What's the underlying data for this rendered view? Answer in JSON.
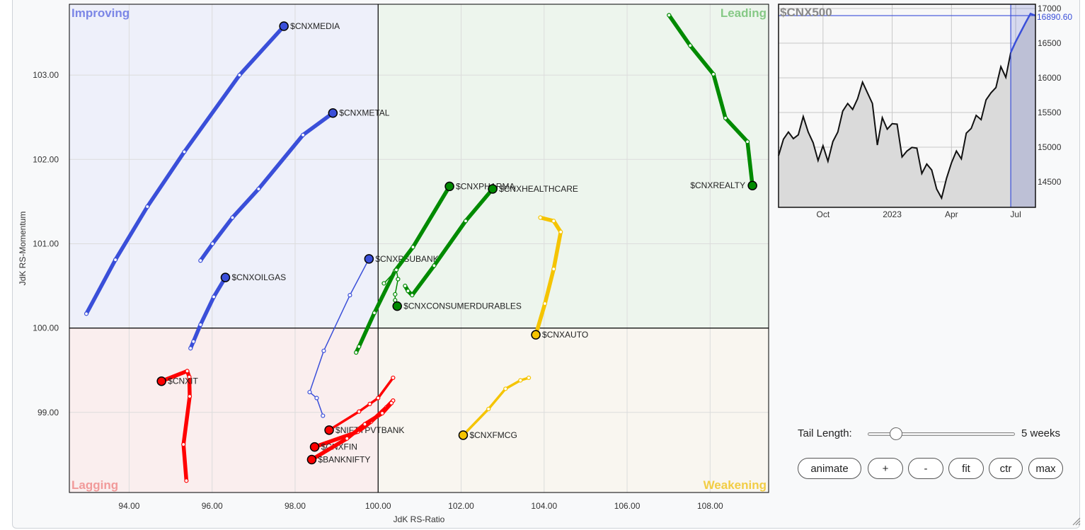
{
  "chart_data": [
    {
      "type": "scatter",
      "subtype": "relative-rotation-graph",
      "xlabel": "JdK RS-Ratio",
      "ylabel": "JdK RS-Momentum",
      "xlim": [
        92.56,
        109.41
      ],
      "ylim": [
        98.05,
        103.84
      ],
      "xticks": [
        94,
        96,
        98,
        100,
        102,
        104,
        106,
        108
      ],
      "xtick_labels": [
        "94.00",
        "96.00",
        "98.00",
        "100.00",
        "102.00",
        "104.00",
        "106.00",
        "108.00"
      ],
      "yticks": [
        99,
        100,
        101,
        102,
        103
      ],
      "ytick_labels": [
        "99.00",
        "100.00",
        "101.00",
        "102.00",
        "103.00"
      ],
      "grid": true,
      "quadrants": {
        "improving": {
          "label": "Improving",
          "color": "#7b86e6",
          "fill": "#eef0fa"
        },
        "leading": {
          "label": "Leading",
          "color": "#86c986",
          "fill": "#edf5ed"
        },
        "lagging": {
          "label": "Lagging",
          "color": "#f19a9a",
          "fill": "#faeeee"
        },
        "weakening": {
          "label": "Weakening",
          "color": "#f2cd45",
          "fill": "#f9f6f0"
        }
      },
      "series": [
        {
          "name": "$CNXMEDIA",
          "color": "#3a4fd9",
          "weight": "thick",
          "x": [
            92.97,
            93.67,
            94.44,
            95.33,
            96.66,
            97.73
          ],
          "y": [
            100.17,
            100.81,
            101.44,
            102.09,
            103.0,
            103.58
          ]
        },
        {
          "name": "$CNXMETAL",
          "color": "#3a4fd9",
          "weight": "thick",
          "x": [
            95.72,
            96.01,
            96.49,
            97.12,
            98.19,
            98.91
          ],
          "y": [
            100.8,
            101.0,
            101.31,
            101.65,
            102.29,
            102.55
          ]
        },
        {
          "name": "$CNXOILGAS",
          "color": "#3a4fd9",
          "weight": "thick",
          "x": [
            95.48,
            95.55,
            95.72,
            96.04,
            96.32
          ],
          "y": [
            99.76,
            99.84,
            100.04,
            100.37,
            100.6
          ]
        },
        {
          "name": "$CNXPSUBANK",
          "color": "#3a4fd9",
          "weight": "thin",
          "x": [
            98.67,
            98.52,
            98.35,
            98.69,
            99.32,
            99.78
          ],
          "y": [
            98.96,
            99.17,
            99.24,
            99.73,
            100.39,
            100.82
          ]
        },
        {
          "name": "$CNXIT",
          "color": "#ff0000",
          "weight": "thick",
          "x": [
            95.38,
            95.31,
            95.46,
            95.45,
            95.4,
            94.78
          ],
          "y": [
            98.19,
            98.62,
            99.19,
            99.42,
            99.49,
            99.37
          ]
        },
        {
          "name": "$NIFTYPVTBANK",
          "color": "#ff0000",
          "weight": "medium",
          "x": [
            100.36,
            100.0,
            99.8,
            99.54,
            98.82
          ],
          "y": [
            99.41,
            99.17,
            99.1,
            99.01,
            98.79
          ]
        },
        {
          "name": "$CNXFIN",
          "color": "#ff0000",
          "weight": "thick",
          "x": [
            100.36,
            100.2,
            99.83,
            99.51,
            98.47
          ],
          "y": [
            99.14,
            99.06,
            98.89,
            98.77,
            98.59
          ]
        },
        {
          "name": "$BANKNIFTY",
          "color": "#ff0000",
          "weight": "thick",
          "x": [
            100.32,
            100.1,
            99.68,
            99.25,
            98.4
          ],
          "y": [
            99.11,
            98.99,
            98.86,
            98.69,
            98.44
          ]
        },
        {
          "name": "$CNXPHARMA",
          "color": "#008a00",
          "weight": "thick",
          "x": [
            99.47,
            99.54,
            99.91,
            100.41,
            100.84,
            101.72
          ],
          "y": [
            99.71,
            99.78,
            100.18,
            100.68,
            100.96,
            101.68
          ]
        },
        {
          "name": "$CNXHEALTHCARE",
          "color": "#008a00",
          "weight": "thick",
          "x": [
            100.65,
            100.72,
            100.82,
            101.35,
            102.11,
            102.76
          ],
          "y": [
            100.5,
            100.44,
            100.39,
            100.74,
            101.27,
            101.65
          ]
        },
        {
          "name": "$CNXCONSUMERDURABLES",
          "color": "#008a00",
          "weight": "thin",
          "x": [
            100.14,
            100.44,
            100.48,
            100.41,
            100.41,
            100.46
          ],
          "y": [
            100.53,
            100.69,
            100.58,
            100.4,
            100.33,
            100.26
          ]
        },
        {
          "name": "$CNXREALTY",
          "color": "#008a00",
          "weight": "thick",
          "label_side": "left",
          "x": [
            107.01,
            107.52,
            108.08,
            108.37,
            108.9,
            109.02
          ],
          "y": [
            103.71,
            103.35,
            103.01,
            102.49,
            102.21,
            101.69
          ]
        },
        {
          "name": "$CNXAUTO",
          "color": "#f5c400",
          "weight": "thick",
          "x": [
            103.91,
            104.23,
            104.4,
            104.23,
            104.02,
            103.8
          ],
          "y": [
            101.31,
            101.27,
            101.14,
            100.7,
            100.29,
            99.92
          ]
        },
        {
          "name": "$CNXFMCG",
          "color": "#f5c400",
          "weight": "medium",
          "x": [
            103.63,
            103.43,
            103.07,
            102.66,
            102.05
          ],
          "y": [
            99.41,
            99.38,
            99.28,
            99.04,
            98.73
          ]
        }
      ]
    },
    {
      "type": "area",
      "title": "$CNX500",
      "ylim": [
        14133,
        17061
      ],
      "yticks": [
        14500,
        15000,
        15500,
        16000,
        16500,
        17000
      ],
      "ytick_labels": [
        "14500",
        "15000",
        "15500",
        "16000",
        "16500",
        "17000"
      ],
      "last_value_label": "16890.60",
      "x_labels": [
        {
          "label": "Oct",
          "index": 9
        },
        {
          "label": "2023",
          "index": 23
        },
        {
          "label": "Apr",
          "index": 35
        },
        {
          "label": "Jul",
          "index": 48
        }
      ],
      "highlight_from_index": 47,
      "values": [
        14877,
        15116,
        15219,
        15123,
        15178,
        15442,
        15219,
        15065,
        14808,
        15021,
        14798,
        15082,
        15219,
        15521,
        15630,
        15545,
        15699,
        15938,
        15784,
        15630,
        15031,
        15425,
        15260,
        15339,
        15332,
        14860,
        14945,
        14997,
        14986,
        14620,
        14757,
        14671,
        14397,
        14267,
        14551,
        14774,
        14945,
        14832,
        15202,
        15271,
        15459,
        15397,
        15682,
        15784,
        15860,
        16161,
        16007,
        16366,
        16521,
        16658,
        16795,
        16925,
        16897
      ]
    }
  ],
  "controls": {
    "tail_length_label": "Tail Length:",
    "tail_length_value": "5 weeks",
    "tail_length_weeks": 5,
    "tail_length_fraction": 0.16,
    "buttons": {
      "animate": "animate",
      "zoom_in": "+",
      "zoom_out": "-",
      "fit": "fit",
      "ctr": "ctr",
      "max": "max"
    }
  }
}
